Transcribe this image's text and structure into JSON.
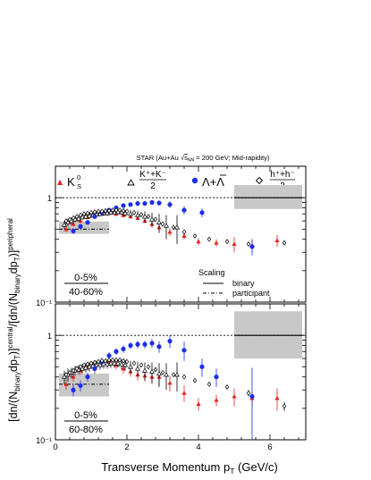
{
  "header": "STAR (Au+Au √s_NN = 200 GeV; Mid-rapidity)",
  "header_parts": {
    "pre": "STAR (Au+Au ",
    "sqrt": "√",
    "s": "s",
    "sub": "NN",
    "post": " = 200 GeV; Mid-rapidity)"
  },
  "legend": {
    "k0s": {
      "base": "K",
      "sup": "0",
      "sub": "S"
    },
    "kpm": {
      "num": "K⁺+K⁻",
      "den": "2"
    },
    "lambda": "Λ+Λ",
    "hpm": {
      "num": "h⁺+h⁻",
      "den": "2"
    },
    "scaling_title": "Scaling",
    "binary": "binary",
    "participant": "participant"
  },
  "ylabel": "[dn/(N_binary dp_T)]^central / [dn/(N_binary dp_T)]^peripheral",
  "ylabel_parts": {
    "open": "[dn/(N",
    "sub1": "binary",
    "mid": "dp",
    "sub2": "T",
    "close": ")]",
    "sup1": "central",
    "slash": "/[dn/(N",
    "sup2": "peripheral"
  },
  "xlabel": "Transverse Momentum p_T (GeV/c)",
  "xlabel_parts": {
    "main": "Transverse Momentum p",
    "sub": "T",
    "unit": " (GeV/c)"
  },
  "chart_data": [
    {
      "type": "scatter",
      "centrality_top": "0-5%",
      "centrality_bottom": "40-60%",
      "xlim": [
        0,
        7
      ],
      "ylim": [
        0.1,
        2
      ],
      "yscale": "log",
      "x_ticks": [
        0,
        2,
        4,
        6
      ],
      "x_tick_labels": [
        "0",
        "2",
        "4",
        "6"
      ],
      "y_ticks": [
        0.1,
        1
      ],
      "y_tick_labels": [
        "10⁻¹",
        "1"
      ],
      "reference_lines": {
        "binary": 1.0,
        "participant": 0.5
      },
      "systematic_bands": [
        {
          "name": "participant",
          "x": [
            0.1,
            1.5
          ],
          "y": [
            0.45,
            0.59
          ]
        },
        {
          "name": "binary",
          "x": [
            5.0,
            6.9
          ],
          "y": [
            0.78,
            1.32
          ]
        }
      ],
      "series": [
        {
          "name": "K0S",
          "marker": "triangle",
          "color": "#e8211d",
          "x": [
            0.3,
            0.5,
            0.7,
            0.9,
            1.1,
            1.3,
            1.5,
            1.7,
            1.9,
            2.1,
            2.3,
            2.5,
            2.7,
            2.9,
            3.2,
            3.6,
            4.0,
            4.5,
            5.0,
            5.5,
            6.2
          ],
          "y": [
            0.5,
            0.56,
            0.6,
            0.65,
            0.68,
            0.7,
            0.72,
            0.7,
            0.68,
            0.66,
            0.64,
            0.6,
            0.56,
            0.52,
            0.47,
            0.43,
            0.38,
            0.37,
            0.36,
            0.35,
            0.39
          ],
          "err": [
            0.03,
            0.03,
            0.03,
            0.03,
            0.03,
            0.03,
            0.03,
            0.03,
            0.03,
            0.03,
            0.03,
            0.03,
            0.03,
            0.04,
            0.04,
            0.03,
            0.03,
            0.03,
            0.06,
            0.05,
            0.05
          ]
        },
        {
          "name": "(K+ + K-)/2",
          "marker": "open-triangle",
          "color": "#000000",
          "x": [
            0.25,
            0.35,
            0.45,
            0.55,
            0.65,
            0.75,
            0.85,
            0.95,
            1.05,
            1.15,
            1.25,
            1.35,
            1.45,
            1.55,
            1.65,
            1.75,
            1.85,
            1.95,
            2.1,
            2.3,
            2.5,
            2.7,
            2.9,
            3.1,
            3.4
          ],
          "y": [
            0.55,
            0.58,
            0.6,
            0.62,
            0.63,
            0.65,
            0.66,
            0.67,
            0.68,
            0.69,
            0.7,
            0.71,
            0.71,
            0.72,
            0.72,
            0.73,
            0.72,
            0.71,
            0.7,
            0.68,
            0.66,
            0.62,
            0.58,
            0.54,
            0.52
          ],
          "err": [
            0.05,
            0.05,
            0.05,
            0.04,
            0.04,
            0.04,
            0.04,
            0.04,
            0.04,
            0.04,
            0.04,
            0.04,
            0.04,
            0.04,
            0.04,
            0.04,
            0.04,
            0.05,
            0.06,
            0.07,
            0.08,
            0.1,
            0.12,
            0.14,
            0.16
          ]
        },
        {
          "name": "Λ+Λbar",
          "marker": "circle",
          "color": "#1b2ee6",
          "x": [
            0.5,
            0.7,
            0.9,
            1.1,
            1.3,
            1.5,
            1.7,
            1.9,
            2.1,
            2.3,
            2.5,
            2.7,
            2.9,
            3.2,
            3.6,
            4.1,
            5.5
          ],
          "y": [
            0.48,
            0.53,
            0.58,
            0.66,
            0.72,
            0.76,
            0.8,
            0.84,
            0.86,
            0.88,
            0.88,
            0.9,
            0.89,
            0.86,
            0.76,
            0.72,
            0.34
          ],
          "err": [
            0.03,
            0.03,
            0.03,
            0.03,
            0.03,
            0.03,
            0.03,
            0.03,
            0.03,
            0.03,
            0.03,
            0.04,
            0.05,
            0.06,
            0.07,
            0.07,
            0.06
          ]
        },
        {
          "name": "(h+ + h-)/2",
          "marker": "open-diamond",
          "color": "#000000",
          "x": [
            0.3,
            0.4,
            0.5,
            0.6,
            0.7,
            0.8,
            0.9,
            1.0,
            1.1,
            1.2,
            1.3,
            1.4,
            1.5,
            1.6,
            1.7,
            1.8,
            1.9,
            2.0,
            2.2,
            2.4,
            2.6,
            2.8,
            3.0,
            3.3,
            3.6,
            3.9,
            4.3,
            4.8,
            5.4,
            6.4
          ],
          "y": [
            0.6,
            0.62,
            0.64,
            0.66,
            0.68,
            0.7,
            0.71,
            0.72,
            0.73,
            0.74,
            0.74,
            0.75,
            0.75,
            0.76,
            0.76,
            0.76,
            0.75,
            0.74,
            0.72,
            0.69,
            0.66,
            0.62,
            0.56,
            0.52,
            0.47,
            0.43,
            0.4,
            0.38,
            0.36,
            0.37
          ],
          "err": [
            0.01,
            0.01,
            0.01,
            0.01,
            0.01,
            0.01,
            0.01,
            0.01,
            0.01,
            0.01,
            0.01,
            0.01,
            0.01,
            0.01,
            0.01,
            0.01,
            0.01,
            0.01,
            0.01,
            0.01,
            0.01,
            0.01,
            0.01,
            0.01,
            0.01,
            0.01,
            0.01,
            0.01,
            0.01,
            0.02
          ]
        }
      ]
    },
    {
      "type": "scatter",
      "centrality_top": "0-5%",
      "centrality_bottom": "60-80%",
      "xlim": [
        0,
        7
      ],
      "ylim": [
        0.1,
        2
      ],
      "yscale": "log",
      "x_ticks": [
        0,
        2,
        4,
        6
      ],
      "x_tick_labels": [
        "0",
        "2",
        "4",
        "6"
      ],
      "y_ticks": [
        0.1,
        1
      ],
      "y_tick_labels": [
        "10⁻¹",
        "1"
      ],
      "reference_lines": {
        "binary": 1.0,
        "participant": 0.34
      },
      "systematic_bands": [
        {
          "name": "participant",
          "x": [
            0.1,
            1.5
          ],
          "y": [
            0.26,
            0.43
          ]
        },
        {
          "name": "binary",
          "x": [
            5.0,
            6.9
          ],
          "y": [
            0.6,
            1.7
          ]
        }
      ],
      "series": [
        {
          "name": "K0S",
          "marker": "triangle",
          "color": "#e8211d",
          "x": [
            0.3,
            0.5,
            0.7,
            0.9,
            1.1,
            1.3,
            1.5,
            1.7,
            1.9,
            2.1,
            2.3,
            2.5,
            2.7,
            2.9,
            3.2,
            3.6,
            4.0,
            4.5,
            5.0,
            5.5,
            6.2
          ],
          "y": [
            0.34,
            0.4,
            0.46,
            0.5,
            0.53,
            0.55,
            0.56,
            0.52,
            0.48,
            0.45,
            0.42,
            0.41,
            0.4,
            0.4,
            0.35,
            0.28,
            0.22,
            0.24,
            0.26,
            0.25,
            0.25
          ],
          "err": [
            0.04,
            0.04,
            0.04,
            0.04,
            0.04,
            0.04,
            0.04,
            0.05,
            0.05,
            0.05,
            0.05,
            0.05,
            0.06,
            0.07,
            0.06,
            0.05,
            0.03,
            0.03,
            0.05,
            0.04,
            0.06
          ]
        },
        {
          "name": "(K+ + K-)/2",
          "marker": "open-triangle",
          "color": "#000000",
          "x": [
            0.25,
            0.35,
            0.45,
            0.55,
            0.65,
            0.75,
            0.85,
            0.95,
            1.05,
            1.15,
            1.25,
            1.35,
            1.45,
            1.55,
            1.65,
            1.75,
            1.85,
            1.95,
            2.1,
            2.3,
            2.5,
            2.7,
            2.9,
            3.1,
            3.4
          ],
          "y": [
            0.4,
            0.42,
            0.44,
            0.46,
            0.47,
            0.48,
            0.49,
            0.5,
            0.51,
            0.52,
            0.52,
            0.53,
            0.53,
            0.54,
            0.54,
            0.54,
            0.53,
            0.52,
            0.5,
            0.48,
            0.46,
            0.45,
            0.43,
            0.42,
            0.42
          ],
          "err": [
            0.06,
            0.06,
            0.05,
            0.05,
            0.05,
            0.05,
            0.05,
            0.05,
            0.05,
            0.05,
            0.05,
            0.05,
            0.05,
            0.05,
            0.05,
            0.05,
            0.06,
            0.06,
            0.07,
            0.08,
            0.09,
            0.1,
            0.11,
            0.12,
            0.13
          ]
        },
        {
          "name": "Λ+Λbar",
          "marker": "circle",
          "color": "#1b2ee6",
          "x": [
            0.5,
            0.7,
            0.9,
            1.1,
            1.3,
            1.5,
            1.7,
            1.9,
            2.1,
            2.3,
            2.5,
            2.7,
            2.9,
            3.2,
            3.6,
            4.1,
            4.5,
            5.5
          ],
          "y": [
            0.3,
            0.33,
            0.4,
            0.48,
            0.56,
            0.64,
            0.7,
            0.74,
            0.8,
            0.82,
            0.82,
            0.84,
            0.78,
            0.88,
            0.72,
            0.5,
            0.4,
            0.26
          ],
          "err": [
            0.04,
            0.04,
            0.04,
            0.05,
            0.05,
            0.05,
            0.05,
            0.06,
            0.06,
            0.07,
            0.07,
            0.08,
            0.1,
            0.12,
            0.15,
            0.1,
            0.08,
            0.23
          ]
        },
        {
          "name": "(h+ + h-)/2",
          "marker": "open-diamond",
          "color": "#000000",
          "x": [
            0.3,
            0.4,
            0.5,
            0.6,
            0.7,
            0.8,
            0.9,
            1.0,
            1.1,
            1.2,
            1.3,
            1.4,
            1.5,
            1.6,
            1.7,
            1.8,
            1.9,
            2.0,
            2.2,
            2.4,
            2.6,
            2.8,
            3.0,
            3.3,
            3.6,
            3.9,
            4.3,
            4.8,
            5.4,
            6.4
          ],
          "y": [
            0.42,
            0.44,
            0.46,
            0.48,
            0.5,
            0.52,
            0.53,
            0.54,
            0.55,
            0.56,
            0.57,
            0.57,
            0.58,
            0.58,
            0.58,
            0.58,
            0.57,
            0.56,
            0.54,
            0.52,
            0.5,
            0.47,
            0.44,
            0.42,
            0.4,
            0.37,
            0.34,
            0.32,
            0.28,
            0.21
          ],
          "err": [
            0.01,
            0.01,
            0.01,
            0.01,
            0.01,
            0.01,
            0.01,
            0.01,
            0.01,
            0.01,
            0.01,
            0.01,
            0.01,
            0.01,
            0.01,
            0.01,
            0.01,
            0.01,
            0.01,
            0.01,
            0.01,
            0.01,
            0.01,
            0.01,
            0.01,
            0.01,
            0.01,
            0.01,
            0.02,
            0.02
          ]
        }
      ]
    }
  ]
}
